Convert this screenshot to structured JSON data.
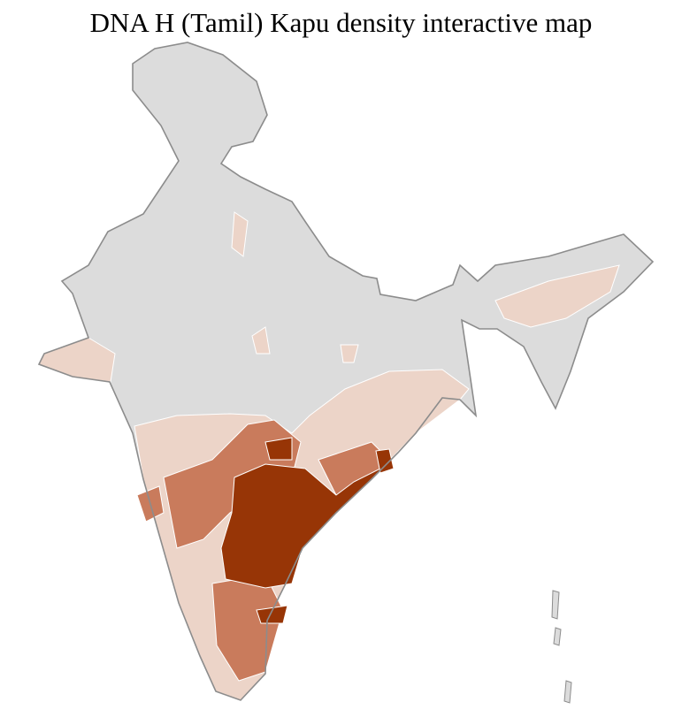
{
  "title": "DNA H (Tamil) Kapu density interactive map",
  "colors": {
    "no_data": "#dcdcdc",
    "low": "#ecd4c8",
    "medium": "#c97b5c",
    "high": "#973506",
    "border": "#8c8c8c"
  },
  "density_levels": [
    "no_data",
    "low",
    "medium",
    "high"
  ]
}
